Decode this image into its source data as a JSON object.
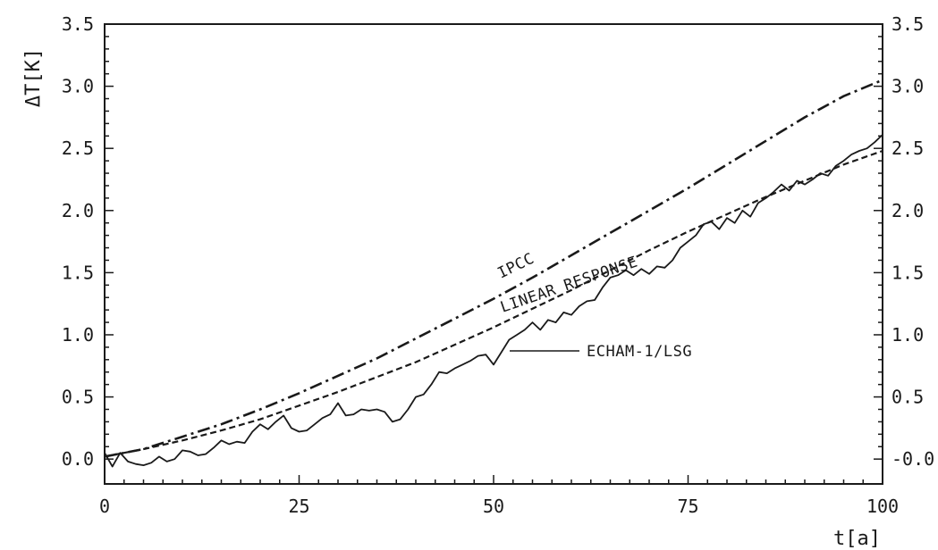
{
  "chart_data": {
    "type": "line",
    "title": "",
    "xlabel": "t[a]",
    "ylabel": "ΔT[K]",
    "xlim": [
      0,
      100
    ],
    "ylim": [
      -0.2,
      3.5
    ],
    "x_ticks": [
      0,
      25,
      50,
      75,
      100
    ],
    "x_tick_labels": [
      "0",
      "25",
      "50",
      "75",
      "100"
    ],
    "y_ticks": [
      0.0,
      0.5,
      1.0,
      1.5,
      2.0,
      2.5,
      3.0,
      3.5
    ],
    "y_tick_labels": [
      "0.0",
      "0.5",
      "1.0",
      "1.5",
      "2.0",
      "2.5",
      "3.0",
      "3.5"
    ],
    "right_y_tick_labels": [
      "-0.0",
      "0.5",
      "1.0",
      "1.5",
      "2.0",
      "2.5",
      "3.0",
      "3.5"
    ],
    "grid": false,
    "legend": "none",
    "series": [
      {
        "name": "IPCC",
        "style": "dash-dot",
        "color": "#1a1a1a",
        "x": [
          0,
          5,
          10,
          15,
          20,
          25,
          30,
          35,
          40,
          45,
          50,
          55,
          60,
          65,
          70,
          75,
          80,
          85,
          90,
          95,
          100
        ],
        "values": [
          0.02,
          0.08,
          0.18,
          0.28,
          0.4,
          0.53,
          0.67,
          0.81,
          0.97,
          1.13,
          1.29,
          1.46,
          1.64,
          1.82,
          2.0,
          2.18,
          2.37,
          2.56,
          2.75,
          2.92,
          3.05
        ]
      },
      {
        "name": "LINEAR RESPONSE",
        "style": "dashed",
        "color": "#1a1a1a",
        "x": [
          0,
          5,
          10,
          15,
          20,
          25,
          30,
          35,
          40,
          45,
          50,
          55,
          60,
          65,
          70,
          75,
          80,
          85,
          90,
          95,
          100
        ],
        "values": [
          0.02,
          0.08,
          0.15,
          0.23,
          0.32,
          0.43,
          0.54,
          0.66,
          0.78,
          0.92,
          1.06,
          1.21,
          1.36,
          1.52,
          1.68,
          1.83,
          1.97,
          2.11,
          2.24,
          2.37,
          2.48
        ]
      },
      {
        "name": "ECHAM-1/LSG",
        "style": "solid",
        "color": "#1a1a1a",
        "x": [
          0,
          1,
          2,
          3,
          4,
          5,
          6,
          7,
          8,
          9,
          10,
          11,
          12,
          13,
          14,
          15,
          16,
          17,
          18,
          19,
          20,
          21,
          22,
          23,
          24,
          25,
          26,
          27,
          28,
          29,
          30,
          31,
          32,
          33,
          34,
          35,
          36,
          37,
          38,
          39,
          40,
          41,
          42,
          43,
          44,
          45,
          46,
          47,
          48,
          49,
          50,
          51,
          52,
          53,
          54,
          55,
          56,
          57,
          58,
          59,
          60,
          61,
          62,
          63,
          64,
          65,
          66,
          67,
          68,
          69,
          70,
          71,
          72,
          73,
          74,
          75,
          76,
          77,
          78,
          79,
          80,
          81,
          82,
          83,
          84,
          85,
          86,
          87,
          88,
          89,
          90,
          91,
          92,
          93,
          94,
          95,
          96,
          97,
          98,
          99,
          100
        ],
        "values": [
          0.05,
          -0.06,
          0.05,
          -0.02,
          -0.04,
          -0.05,
          -0.03,
          0.02,
          -0.02,
          0.0,
          0.07,
          0.06,
          0.03,
          0.04,
          0.09,
          0.15,
          0.12,
          0.14,
          0.13,
          0.22,
          0.28,
          0.24,
          0.3,
          0.35,
          0.25,
          0.22,
          0.23,
          0.28,
          0.33,
          0.36,
          0.45,
          0.35,
          0.36,
          0.4,
          0.39,
          0.4,
          0.38,
          0.3,
          0.32,
          0.4,
          0.5,
          0.52,
          0.6,
          0.7,
          0.69,
          0.73,
          0.76,
          0.79,
          0.83,
          0.84,
          0.76,
          0.86,
          0.96,
          1.0,
          1.04,
          1.1,
          1.04,
          1.12,
          1.1,
          1.18,
          1.16,
          1.23,
          1.27,
          1.28,
          1.38,
          1.46,
          1.48,
          1.52,
          1.48,
          1.53,
          1.49,
          1.55,
          1.54,
          1.6,
          1.7,
          1.75,
          1.8,
          1.89,
          1.91,
          1.85,
          1.94,
          1.9,
          2.0,
          1.95,
          2.06,
          2.1,
          2.15,
          2.21,
          2.16,
          2.24,
          2.21,
          2.25,
          2.3,
          2.28,
          2.36,
          2.4,
          2.45,
          2.48,
          2.5,
          2.55,
          2.61
        ]
      }
    ]
  }
}
